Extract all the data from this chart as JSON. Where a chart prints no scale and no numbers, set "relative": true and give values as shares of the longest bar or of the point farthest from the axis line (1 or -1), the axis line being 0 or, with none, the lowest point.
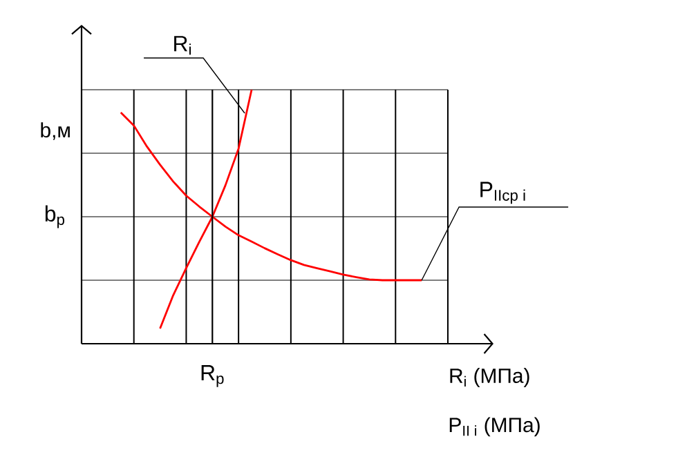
{
  "chart_data": {
    "type": "line",
    "relative": true,
    "ylabel": "b,м",
    "xlabel": "R$_{i}$ (МПа)",
    "annotations": [
      "\\mathrm{P}_{\\text{II i}}\\ \\text{(МПа)}",
      "R$_{p}$",
      "b$_{p}$"
    ],
    "categories": [
      null,
      null,
      null,
      null,
      null,
      null,
      null,
      null,
      null,
      null,
      null,
      null,
      null,
      null,
      null,
      null,
      null,
      null,
      null,
      null,
      null,
      null,
      null,
      null,
      null,
      null,
      null,
      null,
      null
    ],
    "grid": true,
    "marker": "none",
    "line_style": "solid",
    "series": [
      {
        "name": "R$_{i}$",
        "color": "#ff0000",
        "values": [
          null,
          null,
          null,
          null,
          null,
          null,
          0.06,
          0.19,
          0.298,
          0.401,
          0.5,
          0.624,
          0.768,
          1.0,
          null,
          null,
          null,
          null,
          null,
          null,
          null,
          null,
          null,
          null,
          null,
          null,
          null,
          null,
          null
        ]
      },
      {
        "name": "\\mathrm{P}_{\\text{IIср i}}",
        "color": "#ff0000",
        "values": [
          null,
          null,
          null,
          0.91,
          0.859,
          0.776,
          0.705,
          0.639,
          0.583,
          0.54,
          0.5,
          0.461,
          0.427,
          0.402,
          0.376,
          0.352,
          0.329,
          0.31,
          0.297,
          0.285,
          0.272,
          0.262,
          0.253,
          0.25,
          0.25,
          0.25,
          0.25,
          null,
          null
        ]
      }
    ]
  }
}
